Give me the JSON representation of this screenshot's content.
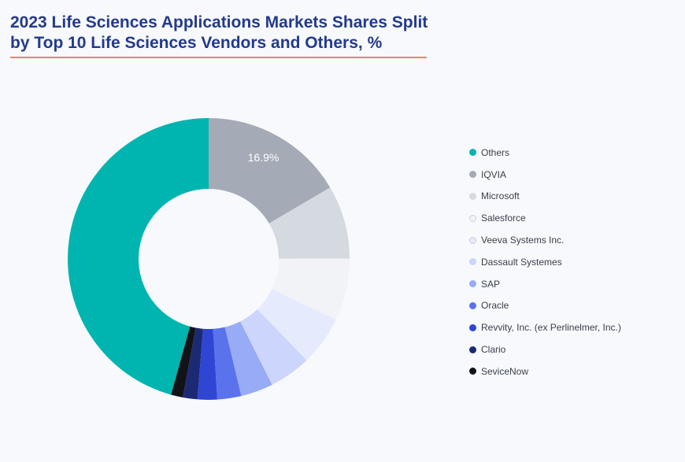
{
  "header": {
    "title": "2023 Life Sciences Applications Markets Shares Split by Top 10 Life Sciences Vendors and Others, %"
  },
  "chart_data": {
    "type": "pie",
    "title": "2023 Life Sciences Applications Markets Shares Split by Top 10 Life Sciences Vendors and Others, %",
    "unit": "%",
    "legend_position": "right",
    "categories": [
      "Others",
      "IQVIA",
      "Microsoft",
      "Salesforce",
      "Veeva Systems Inc.",
      "Dassault Systemes",
      "SAP",
      "Oracle",
      "Revvity, Inc. (ex Perlinelmer, Inc.)",
      "Clario",
      "SeviceNow"
    ],
    "values": [
      46.7,
      16.9,
      8.6,
      7.3,
      5.8,
      4.9,
      3.8,
      2.8,
      2.3,
      1.7,
      1.4
    ],
    "value_labels": [
      "",
      "16.9%",
      "",
      "",
      "",
      "",
      "",
      "",
      "",
      "",
      ""
    ],
    "colors": [
      "#00b5b0",
      "#a4abb6",
      "#d5d9e0",
      "#f2f3f7",
      "#e5eafc",
      "#ccd5fb",
      "#98abf6",
      "#5a73ec",
      "#2f46d4",
      "#1c2a73",
      "#111318"
    ]
  }
}
